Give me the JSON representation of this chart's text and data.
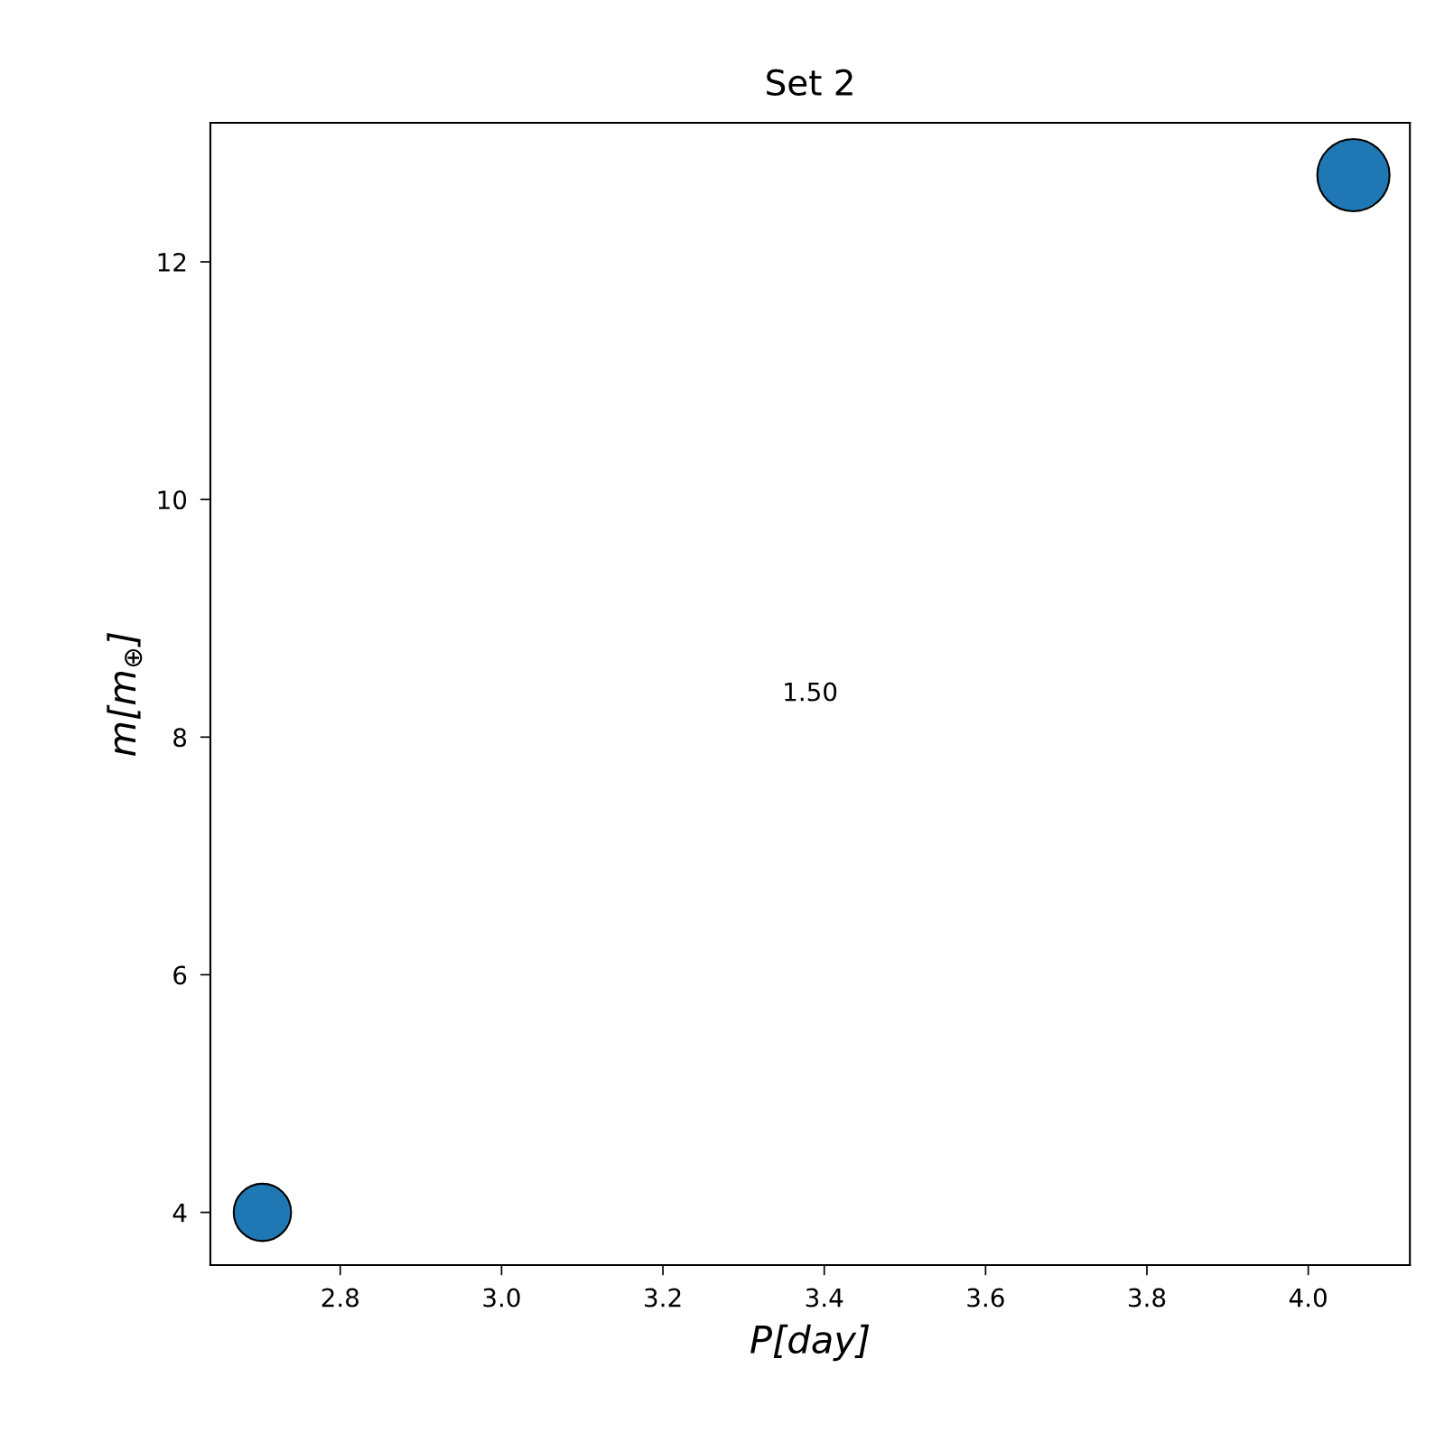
{
  "chart_data": {
    "type": "bubble",
    "title": "Set 2",
    "xlabel": "P[day]",
    "ylabel": "m[m$_{⊕}$]",
    "x": [
      2.7035,
      4.056
    ],
    "series": [
      {
        "color": "#1f77b4",
        "values": [
          4.0,
          12.73
        ],
        "sizes": [
          0.63,
          1
        ]
      }
    ],
    "xlim": [
      2.639,
      4.126
    ],
    "xticks": [
      2.8,
      {
        "value": 3.0,
        "label": "3.0"
      },
      3.2,
      3.4,
      3.6,
      3.8,
      {
        "value": 4.0,
        "label": "4.0"
      }
    ],
    "ylim": [
      3.556,
      13.17
    ],
    "yticks": [
      4,
      6,
      8,
      10,
      12
    ],
    "annotations": [
      "1.50"
    ],
    "grid": false
  }
}
